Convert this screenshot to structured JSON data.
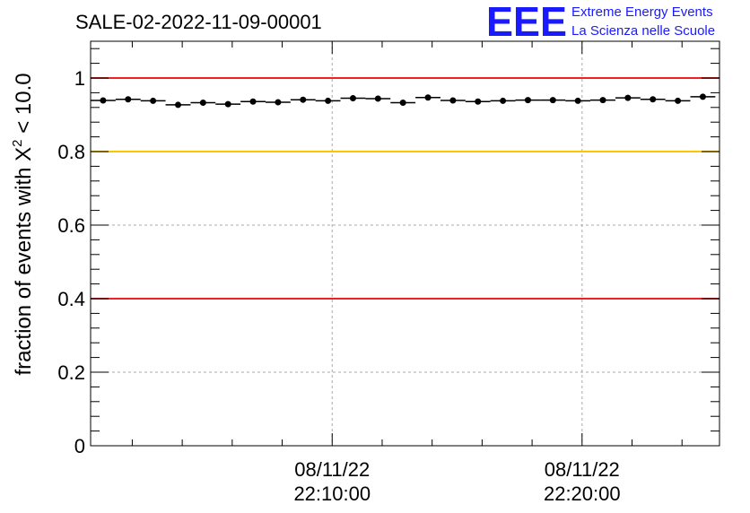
{
  "chart_data": {
    "type": "scatter",
    "title": "SALE-02-2022-11-09-00001",
    "ylabel_prefix": "fraction of events with ",
    "ylabel_symbol": "X",
    "ylabel_sup": "2",
    "ylabel_suffix": " < 10.0",
    "xlim": [
      "08/11/22 22:00:20",
      "08/11/22 22:25:30"
    ],
    "ylim": [
      0,
      1.1
    ],
    "grid": true,
    "y_ticks": [
      0,
      0.2,
      0.4,
      0.6,
      0.8,
      1
    ],
    "y_tick_labels": [
      "0",
      "0.2",
      "0.4",
      "0.6",
      "0.8",
      "1"
    ],
    "x_tick_labels": [
      {
        "time": "08/11/22 22:10:00",
        "line1": "08/11/22",
        "line2": "22:10:00"
      },
      {
        "time": "08/11/22 22:20:00",
        "line1": "08/11/22",
        "line2": "22:20:00"
      }
    ],
    "reference_lines": [
      {
        "y": 1.0,
        "color": "#ee2222"
      },
      {
        "y": 0.8,
        "color": "#ffc400"
      },
      {
        "y": 0.4,
        "color": "#ee2222"
      }
    ],
    "points": [
      {
        "x": "08/11/22 22:00:50",
        "y": 0.939
      },
      {
        "x": "08/11/22 22:01:50",
        "y": 0.942
      },
      {
        "x": "08/11/22 22:02:50",
        "y": 0.938
      },
      {
        "x": "08/11/22 22:03:50",
        "y": 0.927
      },
      {
        "x": "08/11/22 22:04:50",
        "y": 0.933
      },
      {
        "x": "08/11/22 22:05:50",
        "y": 0.929
      },
      {
        "x": "08/11/22 22:06:50",
        "y": 0.936
      },
      {
        "x": "08/11/22 22:07:50",
        "y": 0.934
      },
      {
        "x": "08/11/22 22:08:50",
        "y": 0.941
      },
      {
        "x": "08/11/22 22:09:50",
        "y": 0.938
      },
      {
        "x": "08/11/22 22:10:50",
        "y": 0.945
      },
      {
        "x": "08/11/22 22:11:50",
        "y": 0.944
      },
      {
        "x": "08/11/22 22:12:50",
        "y": 0.933
      },
      {
        "x": "08/11/22 22:13:50",
        "y": 0.947
      },
      {
        "x": "08/11/22 22:14:50",
        "y": 0.939
      },
      {
        "x": "08/11/22 22:15:50",
        "y": 0.936
      },
      {
        "x": "08/11/22 22:16:50",
        "y": 0.938
      },
      {
        "x": "08/11/22 22:17:50",
        "y": 0.94
      },
      {
        "x": "08/11/22 22:18:50",
        "y": 0.94
      },
      {
        "x": "08/11/22 22:19:50",
        "y": 0.938
      },
      {
        "x": "08/11/22 22:20:50",
        "y": 0.94
      },
      {
        "x": "08/11/22 22:21:50",
        "y": 0.946
      },
      {
        "x": "08/11/22 22:22:50",
        "y": 0.942
      },
      {
        "x": "08/11/22 22:23:50",
        "y": 0.938
      },
      {
        "x": "08/11/22 22:24:50",
        "y": 0.949
      }
    ],
    "point_color": "#000000"
  },
  "logo": {
    "mark": "EEE",
    "line1": "Extreme Energy Events",
    "line2": "La Scienza nelle Scuole",
    "color": "#1a1aff"
  }
}
